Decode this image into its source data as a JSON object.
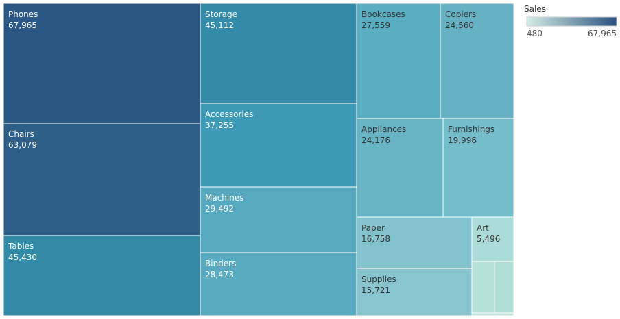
{
  "chart_data": {
    "type": "treemap",
    "title": "",
    "legend": {
      "title": "Sales",
      "min_label": "480",
      "max_label": "67,965",
      "min": 480,
      "max": 67965,
      "color_low": "#d4ede6",
      "color_high": "#2b5280",
      "placement": "top-right"
    },
    "items": [
      {
        "name": "Phones",
        "value": 67965,
        "value_label": "67,965",
        "color": "#2b5784"
      },
      {
        "name": "Chairs",
        "value": 63079,
        "value_label": "63,079",
        "color": "#2e5f89"
      },
      {
        "name": "Tables",
        "value": 45430,
        "value_label": "45,430",
        "color": "#328aa7"
      },
      {
        "name": "Storage",
        "value": 45112,
        "value_label": "45,112",
        "color": "#338ba9"
      },
      {
        "name": "Accessories",
        "value": 37255,
        "value_label": "37,255",
        "color": "#3f9ab7"
      },
      {
        "name": "Machines",
        "value": 29492,
        "value_label": "29,492",
        "color": "#56a9be"
      },
      {
        "name": "Binders",
        "value": 28473,
        "value_label": "28,473",
        "color": "#58abc0"
      },
      {
        "name": "Bookcases",
        "value": 27559,
        "value_label": "27,559",
        "color": "#5aaec2"
      },
      {
        "name": "Copiers",
        "value": 24560,
        "value_label": "24,560",
        "color": "#66b2c4"
      },
      {
        "name": "Appliances",
        "value": 24176,
        "value_label": "24,176",
        "color": "#68b4c5"
      },
      {
        "name": "Furnishings",
        "value": 19996,
        "value_label": "19,996",
        "color": "#76bdcb"
      },
      {
        "name": "Paper",
        "value": 16758,
        "value_label": "16,758",
        "color": "#82c3cd"
      },
      {
        "name": "Supplies",
        "value": 15721,
        "value_label": "15,721",
        "color": "#88c5cf"
      },
      {
        "name": "Art",
        "value": 5496,
        "value_label": "5,496",
        "color": "#acdcd7"
      },
      {
        "name": "",
        "value": 2000,
        "value_label": "",
        "color": "#b4e0d9"
      },
      {
        "name": "",
        "value": 1800,
        "value_label": "",
        "color": "#b1dfd8"
      },
      {
        "name": "",
        "value": 480,
        "value_label": "",
        "color": "#c0e5dd"
      }
    ]
  }
}
